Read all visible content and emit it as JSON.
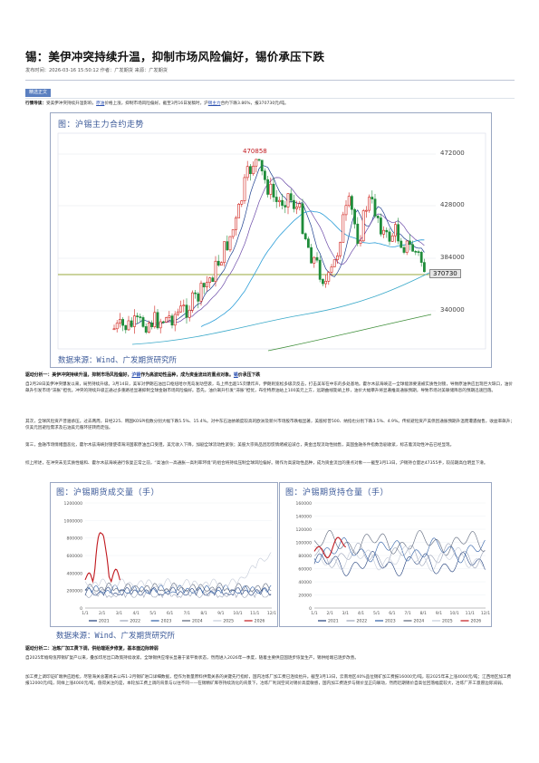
{
  "article": {
    "title": "锡：美伊冲突持续升温，抑制市场风险偏好，锡价承压下跌",
    "meta": "发布时间：2026-03-16 15:50:12  作者：广发期货  来源：广发期货",
    "tag": "精选正文",
    "summary_label": "行情导读：",
    "summary_a": "受美伊冲突持续升温影响，",
    "summary_link1": "原油",
    "summary_b": "价格上涨，抑制市场风险偏好。截至3月16日发稿时，沪",
    "summary_link2": "锡主力",
    "summary_c": "合约下跌3.86%，报370730元/吨。"
  },
  "chart1": {
    "title": "图：沪锡主力合约走势",
    "source": "数据来源：Wind、广发期货研究所",
    "price_labels": [
      "472000",
      "428000",
      "384000",
      "340000"
    ],
    "current_price": "370730",
    "peak_label": "470858"
  },
  "analysis1": {
    "heading_a": "驱动分析一：美伊冲突持续升温，抑制市场风险偏好，",
    "heading_link1": "沪铜",
    "heading_b": "作为高波动性品种，成为资金流出的重点对象。",
    "heading_link2": "锡",
    "heading_c": "价承压下跌",
    "p1": "自2月28日美伊冲突爆发以来，局势持续升级。3月14日，美军对伊朗石油出口枢纽哈尔克岛发动空袭，岛上传出超15次爆炸声，伊朗则宽松多级次反击，打击美军在中东的多处基地。霍尔木兹海峡这一全球能源要道被实质性封锁，导致原油供应出现巨大缺口，油价飙升引发市场“滞胀”担忧。冲突的持续升级正通过多重路径显著抑制全球金融市场风险偏好。首先，油价飙升引发“滞胀”担忧，布伦特原油站上100美元上方，远期曲线陡峭上移，油价大幅攀升将显著推高通胀预期，导致市场对美联储降息的预期迅速回落。",
    "p2": "其次，全球风险资产普遍承压。过去两周，日经225、韩国KOSPI指数分别大幅下跌5.5%、15.4%。对中东石油依赖度较高的欧洲及新兴市场股市跌幅显著，美股标普500、纳指也分别下跌3.5%、4.9%。传统避险资产美债因通胀预期升温而遭遇抛售，收益率飙升；仅美元因避险需求及石油美元循环逆转而走强。",
    "p3": "第三，金融市场情绪面恶化，霍尔木兹海峡封锁使得海湾国家原油出口受阻，美元收入下降，加剧全球流动性紧张；美股大宗商品因恐慌情绪被迫减仓，黄金出现流动性抛售，美国金融条件指数急剧收紧，标志着流动性冲击已经显现。",
    "p4": "综上所述，在冲突未见实质性缓和、霍尔木兹海峡通行恢复正常之前，“高油价—高通胀—高利率环境”的组合将持续压制全球风险偏好。锡作为高波动性品种，成为资金流出的重点对象——截至3月13日，沪锡持仓量达47355手，较前期高位明显下滑。"
  },
  "chart2": {
    "title": "图：沪锡期货成交量（手）",
    "y_labels": [
      "1200000",
      "1000000",
      "800000",
      "600000",
      "400000",
      "200000",
      "0"
    ],
    "x_labels": [
      "1/1",
      "2/1",
      "3/1",
      "4/1",
      "5/1",
      "6/1",
      "7/1",
      "8/1",
      "9/1",
      "10/1",
      "11/1",
      "12/1"
    ],
    "legend": [
      "2021",
      "2022",
      "2023",
      "2024",
      "2025",
      "2026"
    ],
    "colors": [
      "#1f3d7a",
      "#9aa3b8",
      "#2f5fa6",
      "#5a6478",
      "#c3cad8",
      "#c0171d"
    ]
  },
  "chart3": {
    "title": "图：沪锡期货持仓量（手）",
    "y_labels": [
      "160000",
      "140000",
      "120000",
      "100000",
      "80000",
      "60000",
      "40000",
      "20000",
      "0"
    ],
    "x_labels": [
      "1/1",
      "2/1",
      "3/1",
      "4/1",
      "5/1",
      "6/1",
      "7/1",
      "8/1",
      "9/1",
      "10/1",
      "11/1",
      "12/1"
    ],
    "legend": [
      "2021",
      "2022",
      "2023",
      "2024",
      "2025",
      "2026"
    ],
    "colors": [
      "#1f3d7a",
      "#9aa3b8",
      "#2f5fa6",
      "#5a6478",
      "#c3cad8",
      "#c0171d"
    ]
  },
  "source2": "数据来源：Wind、广发期货研究所",
  "analysis2": {
    "heading": "驱动分析二：冶炼厂加工费下调，供给端逐步修复，基本面边际转弱",
    "p1": "自2025年缅甸佤邦锡矿复产以来，叠加印尼出口政策持续收紧，全球锡供应增长显著于紧平衡状态，然而进入2026年一季度，随着主要供应国逐步恢复生产，锡供给端已逐步改善。",
    "p2": "加工费上调印证矿端供应趋松，尽管海关总署尚未公布1-2月锡矿进口详细数据，但作为衡量原料供需关系的关键先行指标，国内冶炼厂加工费已连续抬升。截至3月13日，云南地区40%品位锡矿加工费报16000元/吨，较2025年末上涨4000元/吨；江西地区加工费报12000元/吨，同样上涨4000元/吨，值得关注的是，本轮加工费上调的背景与以往不同——在锡精矿库存持续消化的背景下，冶炼厂利润空间对锡价高度敏感，国内加工费逐步与锡价呈正向联动，然而近期锡价自高位回落幅度较大，冶炼厂开工意愿边际减弱。"
  }
}
